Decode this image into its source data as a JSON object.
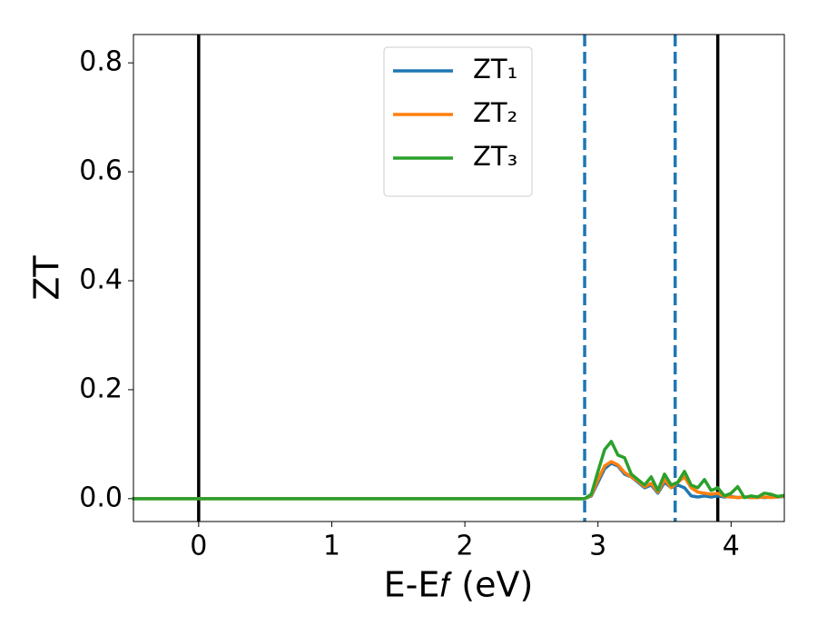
{
  "chart_data": {
    "type": "line",
    "xlabel": "E-E𝑓 (eV)",
    "ylabel": "ZT",
    "x": [
      -0.5,
      2.9,
      2.95,
      3.0,
      3.05,
      3.1,
      3.15,
      3.2,
      3.25,
      3.3,
      3.35,
      3.4,
      3.45,
      3.5,
      3.55,
      3.6,
      3.65,
      3.7,
      3.75,
      3.8,
      3.85,
      3.9,
      3.95,
      4.0,
      4.05,
      4.1,
      4.15,
      4.2,
      4.25,
      4.3,
      4.35,
      4.4
    ],
    "series": [
      {
        "name": "ZT₁",
        "color": "#1f77b4",
        "values": [
          0,
          0,
          0.005,
          0.03,
          0.055,
          0.065,
          0.06,
          0.045,
          0.04,
          0.03,
          0.02,
          0.025,
          0.01,
          0.03,
          0.02,
          0.025,
          0.02,
          0.005,
          0.003,
          0.005,
          0.003,
          0.005,
          0.003,
          0.004,
          0.002,
          0.003,
          0.002,
          0.003,
          0.002,
          0.003,
          0.003,
          0.004
        ]
      },
      {
        "name": "ZT₂",
        "color": "#ff7f0e",
        "values": [
          0,
          0,
          0.006,
          0.035,
          0.06,
          0.068,
          0.062,
          0.048,
          0.04,
          0.032,
          0.022,
          0.028,
          0.012,
          0.035,
          0.02,
          0.03,
          0.04,
          0.02,
          0.012,
          0.01,
          0.008,
          0.01,
          0.004,
          0.003,
          0.002,
          0.003,
          0.002,
          0.002,
          0.003,
          0.002,
          0.003,
          0.005
        ]
      },
      {
        "name": "ZT₃",
        "color": "#2ca02c",
        "values": [
          0,
          0,
          0.008,
          0.05,
          0.09,
          0.105,
          0.08,
          0.075,
          0.045,
          0.035,
          0.025,
          0.04,
          0.015,
          0.045,
          0.025,
          0.03,
          0.05,
          0.025,
          0.02,
          0.035,
          0.015,
          0.02,
          0.005,
          0.01,
          0.022,
          0.002,
          0.005,
          0.003,
          0.01,
          0.008,
          0.004,
          0.006
        ]
      }
    ],
    "vlines": [
      {
        "x": 0,
        "color": "#000000",
        "dashed": false
      },
      {
        "x": 3.9,
        "color": "#000000",
        "dashed": false
      },
      {
        "x": 2.9,
        "color": "#1f77b4",
        "dashed": true
      },
      {
        "x": 3.58,
        "color": "#1f77b4",
        "dashed": true
      }
    ],
    "xlim": [
      -0.49,
      4.4
    ],
    "ylim": [
      -0.042,
      0.852
    ],
    "xticks": [
      0,
      1,
      2,
      3,
      4
    ],
    "yticks": [
      {
        "value": 0,
        "label": "0.0"
      },
      0.2,
      0.4,
      0.6,
      0.8
    ],
    "legend": "upper center"
  }
}
